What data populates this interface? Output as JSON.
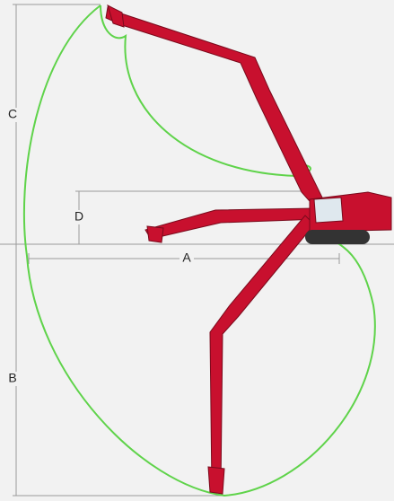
{
  "labels": {
    "c": "C",
    "d": "D",
    "a": "A",
    "b": "B"
  }
}
